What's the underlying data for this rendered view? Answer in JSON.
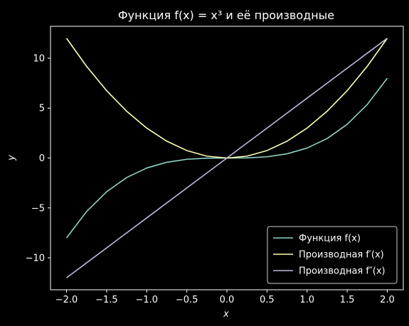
{
  "chart_data": {
    "type": "line",
    "title": "Функция f(x) = x³ и её производные",
    "xlabel": "x",
    "ylabel": "y",
    "xlim": [
      -2.2,
      2.2
    ],
    "ylim": [
      -13.2,
      13.2
    ],
    "xticks": [
      -2.0,
      -1.5,
      -1.0,
      -0.5,
      0.0,
      0.5,
      1.0,
      1.5,
      2.0
    ],
    "xtick_labels": [
      "−2.0",
      "−1.5",
      "−1.0",
      "−0.5",
      "0.0",
      "0.5",
      "1.0",
      "1.5",
      "2.0"
    ],
    "yticks": [
      -10,
      -5,
      0,
      5,
      10
    ],
    "ytick_labels": [
      "−10",
      "−5",
      "0",
      "5",
      "10"
    ],
    "grid": false,
    "legend_position": "bottom-right",
    "x": [
      -2.0,
      -1.75,
      -1.5,
      -1.25,
      -1.0,
      -0.75,
      -0.5,
      -0.25,
      0.0,
      0.25,
      0.5,
      0.75,
      1.0,
      1.25,
      1.5,
      1.75,
      2.0
    ],
    "series": [
      {
        "name": "Функция f(x)",
        "color": "#8dd3c7",
        "values": [
          -8.0,
          -5.359,
          -3.375,
          -1.953,
          -1.0,
          -0.422,
          -0.125,
          -0.016,
          0.0,
          0.016,
          0.125,
          0.422,
          1.0,
          1.953,
          3.375,
          5.359,
          8.0
        ]
      },
      {
        "name": "Производная f′(x)",
        "color": "#feffb3",
        "values": [
          12.0,
          9.188,
          6.75,
          4.688,
          3.0,
          1.688,
          0.75,
          0.188,
          0.0,
          0.188,
          0.75,
          1.688,
          3.0,
          4.688,
          6.75,
          9.188,
          12.0
        ]
      },
      {
        "name": "Производная f″(x)",
        "color": "#bfbbd9",
        "values": [
          -12.0,
          -10.5,
          -9.0,
          -7.5,
          -6.0,
          -4.5,
          -3.0,
          -1.5,
          0.0,
          1.5,
          3.0,
          4.5,
          6.0,
          7.5,
          9.0,
          10.5,
          12.0
        ]
      }
    ]
  }
}
